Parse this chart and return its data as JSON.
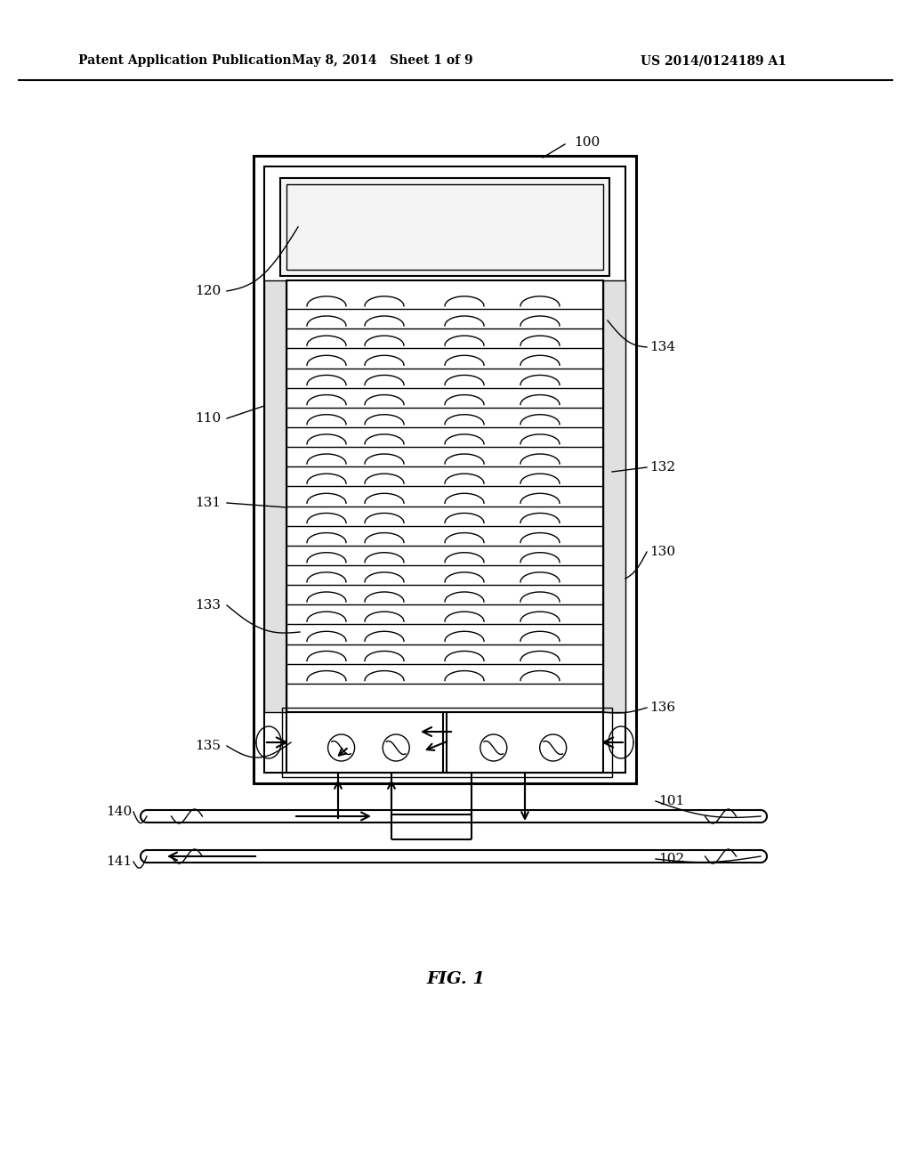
{
  "bg_color": "#ffffff",
  "line_color": "#000000",
  "header_left": "Patent Application Publication",
  "header_mid": "May 8, 2014   Sheet 1 of 9",
  "header_right": "US 2014/0124189 A1",
  "fig_label": "FIG. 1"
}
